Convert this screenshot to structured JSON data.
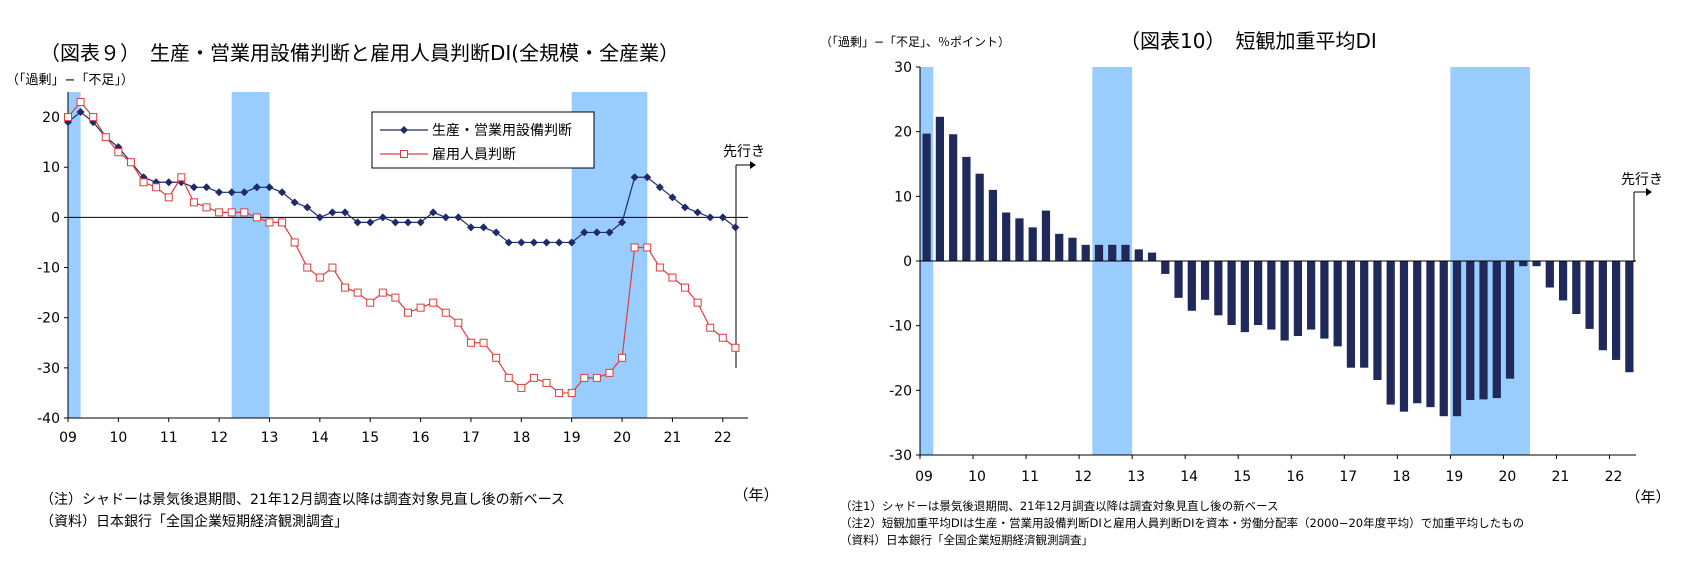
{
  "chart_data": [
    {
      "type": "line",
      "title": "（図表９）　生産・営業用設備判断と雇用人員判断DI(全規模・全産業）",
      "ylabel": "（「過剰」−「不足」）",
      "xlabel": "（年）",
      "ylim": [
        -40,
        25
      ],
      "yticks": [
        20,
        10,
        0,
        -10,
        -20,
        -30,
        -40
      ],
      "xticks": [
        "09",
        "10",
        "11",
        "12",
        "13",
        "14",
        "15",
        "16",
        "17",
        "18",
        "19",
        "20",
        "21",
        "22"
      ],
      "x_start_year": 2009.0,
      "x_step": 0.25,
      "shading": [
        [
          2009.0,
          2009.25
        ],
        [
          2012.25,
          2013.0
        ],
        [
          2019.0,
          2020.5
        ]
      ],
      "forecast_label": "先行き",
      "legend_position": "top-right",
      "series": [
        {
          "name": "生産・営業用設備判断",
          "marker": "diamond",
          "color": "#1f2a6b",
          "values": [
            19,
            21,
            19,
            16,
            14,
            11,
            8,
            7,
            7,
            7,
            6,
            6,
            5,
            5,
            5,
            6,
            6,
            5,
            3,
            2,
            0,
            1,
            1,
            -1,
            -1,
            0,
            -1,
            -1,
            -1,
            1,
            0,
            0,
            -2,
            -2,
            -3,
            -5,
            -5,
            -5,
            -5,
            -5,
            -5,
            -3,
            -3,
            -3,
            -1,
            8,
            8,
            6,
            4,
            2,
            1,
            0,
            0,
            -2
          ]
        },
        {
          "name": "雇用人員判断",
          "marker": "square-open",
          "color": "#e03c3c",
          "values": [
            20,
            23,
            20,
            16,
            13,
            11,
            7,
            6,
            4,
            8,
            3,
            2,
            1,
            1,
            1,
            0,
            -1,
            -1,
            -5,
            -10,
            -12,
            -10,
            -14,
            -15,
            -17,
            -15,
            -16,
            -19,
            -18,
            -17,
            -19,
            -21,
            -25,
            -25,
            -28,
            -32,
            -34,
            -32,
            -33,
            -35,
            -35,
            -32,
            -32,
            -31,
            -28,
            -6,
            -6,
            -10,
            -12,
            -14,
            -17,
            -22,
            -24,
            -26
          ]
        }
      ],
      "notes": [
        "（注）シャドーは景気後退期間、21年12月調査以降は調査対象見直し後の新ベース",
        "（資料）日本銀行「全国企業短期経済観測調査」"
      ]
    },
    {
      "type": "bar",
      "title": "（図表10）　短観加重平均DI",
      "ylabel": "（「過剰」−「不足」、％ポイント）",
      "xlabel": "（年）",
      "ylim": [
        -30,
        30
      ],
      "yticks": [
        30,
        20,
        10,
        0,
        -10,
        -20,
        -30
      ],
      "xticks": [
        "09",
        "10",
        "11",
        "12",
        "13",
        "14",
        "15",
        "16",
        "17",
        "18",
        "19",
        "20",
        "21",
        "22"
      ],
      "x_start_year": 2009.0,
      "x_step": 0.25,
      "shading": [
        [
          2009.0,
          2009.25
        ],
        [
          2012.25,
          2013.0
        ],
        [
          2019.0,
          2020.5
        ]
      ],
      "forecast_label": "先行き",
      "color": "#1f2a5a",
      "values": [
        19.7,
        22.3,
        19.6,
        16.1,
        13.5,
        11.0,
        7.5,
        6.6,
        5.2,
        7.8,
        4.2,
        3.6,
        2.5,
        2.5,
        2.5,
        2.5,
        1.8,
        1.3,
        -2.0,
        -5.7,
        -7.7,
        -6.0,
        -8.4,
        -9.9,
        -11.0,
        -9.9,
        -10.6,
        -12.3,
        -11.6,
        -10.6,
        -12.0,
        -13.2,
        -16.5,
        -16.5,
        -18.4,
        -22.2,
        -23.3,
        -22.0,
        -22.6,
        -24.0,
        -24.0,
        -21.5,
        -21.4,
        -21.2,
        -18.2,
        -0.8,
        -0.8,
        -4.1,
        -6.1,
        -8.2,
        -10.5,
        -13.8,
        -15.3,
        -17.2
      ],
      "notes": [
        "（注1）シャドーは景気後退期間、21年12月調査以降は調査対象見直し後の新ベース",
        "（注2）短観加重平均DIは生産・営業用設備判断DIと雇用人員判断DIを資本・労働分配率（2000−20年度平均）で加重平均したもの",
        "（資料）日本銀行「全国企業短期経済観測調査」"
      ]
    }
  ]
}
